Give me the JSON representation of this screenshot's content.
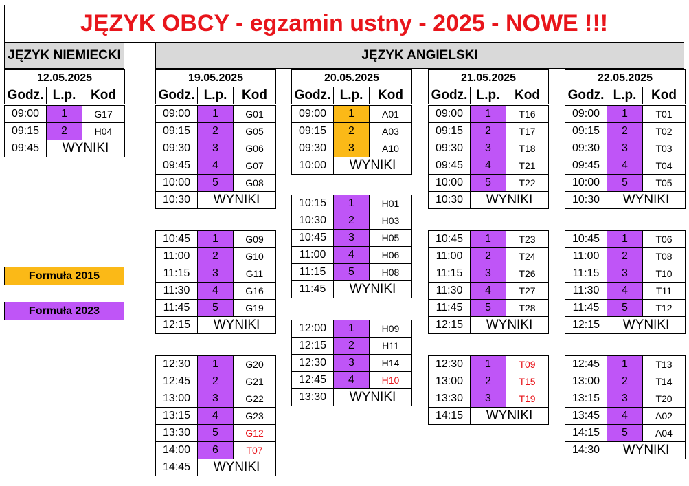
{
  "title": "JĘZYK OBCY - egzamin ustny - 2025 - NOWE !!!",
  "sections": {
    "german": "JĘZYK NIEMIECKI",
    "english": "JĘZYK ANGIELSKI"
  },
  "headers": {
    "time": "Godz.",
    "lp": "L.p.",
    "code": "Kod"
  },
  "results_label": "WYNIKI",
  "legend": [
    {
      "label": "Formuła 2015",
      "color": "#fbb917"
    },
    {
      "label": "Formuła 2023",
      "color": "#bf55f7"
    }
  ],
  "colors": {
    "title": "#e8151b",
    "formula_2015": "#fbb917",
    "formula_2023": "#bf55f7",
    "red_code": "#e8151b",
    "band": "#d9d9d9"
  },
  "tables": [
    {
      "date": "12.05.2025",
      "blocks": [
        {
          "rows": [
            {
              "time": "09:00",
              "lp": "1",
              "code": "G17",
              "formula": "2023"
            },
            {
              "time": "09:15",
              "lp": "2",
              "code": "H04",
              "formula": "2023"
            }
          ],
          "result_time": "09:45"
        }
      ]
    },
    {
      "date": "19.05.2025",
      "blocks": [
        {
          "rows": [
            {
              "time": "09:00",
              "lp": "1",
              "code": "G01",
              "formula": "2023"
            },
            {
              "time": "09:15",
              "lp": "2",
              "code": "G05",
              "formula": "2023"
            },
            {
              "time": "09:30",
              "lp": "3",
              "code": "G06",
              "formula": "2023"
            },
            {
              "time": "09:45",
              "lp": "4",
              "code": "G07",
              "formula": "2023"
            },
            {
              "time": "10:00",
              "lp": "5",
              "code": "G08",
              "formula": "2023"
            }
          ],
          "result_time": "10:30"
        },
        {
          "rows": [
            {
              "time": "10:45",
              "lp": "1",
              "code": "G09",
              "formula": "2023"
            },
            {
              "time": "11:00",
              "lp": "2",
              "code": "G10",
              "formula": "2023"
            },
            {
              "time": "11:15",
              "lp": "3",
              "code": "G11",
              "formula": "2023"
            },
            {
              "time": "11:30",
              "lp": "4",
              "code": "G16",
              "formula": "2023"
            },
            {
              "time": "11:45",
              "lp": "5",
              "code": "G19",
              "formula": "2023"
            }
          ],
          "result_time": "12:15"
        },
        {
          "rows": [
            {
              "time": "12:30",
              "lp": "1",
              "code": "G20",
              "formula": "2023"
            },
            {
              "time": "12:45",
              "lp": "2",
              "code": "G21",
              "formula": "2023"
            },
            {
              "time": "13:00",
              "lp": "3",
              "code": "G22",
              "formula": "2023"
            },
            {
              "time": "13:15",
              "lp": "4",
              "code": "G23",
              "formula": "2023"
            },
            {
              "time": "13:30",
              "lp": "5",
              "code": "G12",
              "formula": "2023",
              "red": true
            },
            {
              "time": "14:00",
              "lp": "6",
              "code": "T07",
              "formula": "2023",
              "red": true
            }
          ],
          "result_time": "14:45"
        }
      ]
    },
    {
      "date": "20.05.2025",
      "blocks": [
        {
          "rows": [
            {
              "time": "09:00",
              "lp": "1",
              "code": "A01",
              "formula": "2015"
            },
            {
              "time": "09:15",
              "lp": "2",
              "code": "A03",
              "formula": "2015"
            },
            {
              "time": "09:30",
              "lp": "3",
              "code": "A10",
              "formula": "2015"
            }
          ],
          "result_time": "10:00"
        },
        {
          "rows": [
            {
              "time": "10:15",
              "lp": "1",
              "code": "H01",
              "formula": "2023"
            },
            {
              "time": "10:30",
              "lp": "2",
              "code": "H03",
              "formula": "2023"
            },
            {
              "time": "10:45",
              "lp": "3",
              "code": "H05",
              "formula": "2023"
            },
            {
              "time": "11:00",
              "lp": "4",
              "code": "H06",
              "formula": "2023"
            },
            {
              "time": "11:15",
              "lp": "5",
              "code": "H08",
              "formula": "2023"
            }
          ],
          "result_time": "11:45"
        },
        {
          "rows": [
            {
              "time": "12:00",
              "lp": "1",
              "code": "H09",
              "formula": "2023"
            },
            {
              "time": "12:15",
              "lp": "2",
              "code": "H11",
              "formula": "2023"
            },
            {
              "time": "12:30",
              "lp": "3",
              "code": "H14",
              "formula": "2023"
            },
            {
              "time": "12:45",
              "lp": "4",
              "code": "H10",
              "formula": "2023",
              "red": true
            }
          ],
          "result_time": "13:30"
        }
      ]
    },
    {
      "date": "21.05.2025",
      "blocks": [
        {
          "rows": [
            {
              "time": "09:00",
              "lp": "1",
              "code": "T16",
              "formula": "2023"
            },
            {
              "time": "09:15",
              "lp": "2",
              "code": "T17",
              "formula": "2023"
            },
            {
              "time": "09:30",
              "lp": "3",
              "code": "T18",
              "formula": "2023"
            },
            {
              "time": "09:45",
              "lp": "4",
              "code": "T21",
              "formula": "2023"
            },
            {
              "time": "10:00",
              "lp": "5",
              "code": "T22",
              "formula": "2023"
            }
          ],
          "result_time": "10:30"
        },
        {
          "rows": [
            {
              "time": "10:45",
              "lp": "1",
              "code": "T23",
              "formula": "2023"
            },
            {
              "time": "11:00",
              "lp": "2",
              "code": "T24",
              "formula": "2023"
            },
            {
              "time": "11:15",
              "lp": "3",
              "code": "T26",
              "formula": "2023"
            },
            {
              "time": "11:30",
              "lp": "4",
              "code": "T27",
              "formula": "2023"
            },
            {
              "time": "11:45",
              "lp": "5",
              "code": "T28",
              "formula": "2023"
            }
          ],
          "result_time": "12:15"
        },
        {
          "rows": [
            {
              "time": "12:30",
              "lp": "1",
              "code": "T09",
              "formula": "2023",
              "red": true
            },
            {
              "time": "13:00",
              "lp": "2",
              "code": "T15",
              "formula": "2023",
              "red": true
            },
            {
              "time": "13:30",
              "lp": "3",
              "code": "T19",
              "formula": "2023",
              "red": true
            }
          ],
          "result_time": "14:15"
        }
      ]
    },
    {
      "date": "22.05.2025",
      "blocks": [
        {
          "rows": [
            {
              "time": "09:00",
              "lp": "1",
              "code": "T01",
              "formula": "2023"
            },
            {
              "time": "09:15",
              "lp": "2",
              "code": "T02",
              "formula": "2023"
            },
            {
              "time": "09:30",
              "lp": "3",
              "code": "T03",
              "formula": "2023"
            },
            {
              "time": "09:45",
              "lp": "4",
              "code": "T04",
              "formula": "2023"
            },
            {
              "time": "10:00",
              "lp": "5",
              "code": "T05",
              "formula": "2023"
            }
          ],
          "result_time": "10:30"
        },
        {
          "rows": [
            {
              "time": "10:45",
              "lp": "1",
              "code": "T06",
              "formula": "2023"
            },
            {
              "time": "11:00",
              "lp": "2",
              "code": "T08",
              "formula": "2023"
            },
            {
              "time": "11:15",
              "lp": "3",
              "code": "T10",
              "formula": "2023"
            },
            {
              "time": "11:30",
              "lp": "4",
              "code": "T11",
              "formula": "2023"
            },
            {
              "time": "11:45",
              "lp": "5",
              "code": "T12",
              "formula": "2023"
            }
          ],
          "result_time": "12:15"
        },
        {
          "rows": [
            {
              "time": "12:45",
              "lp": "1",
              "code": "T13",
              "formula": "2023"
            },
            {
              "time": "13:00",
              "lp": "2",
              "code": "T14",
              "formula": "2023"
            },
            {
              "time": "13:15",
              "lp": "3",
              "code": "T20",
              "formula": "2023"
            },
            {
              "time": "13:45",
              "lp": "4",
              "code": "A02",
              "formula": "2023"
            },
            {
              "time": "14:15",
              "lp": "5",
              "code": "A04",
              "formula": "2023"
            }
          ],
          "result_time": "14:30"
        }
      ]
    }
  ]
}
